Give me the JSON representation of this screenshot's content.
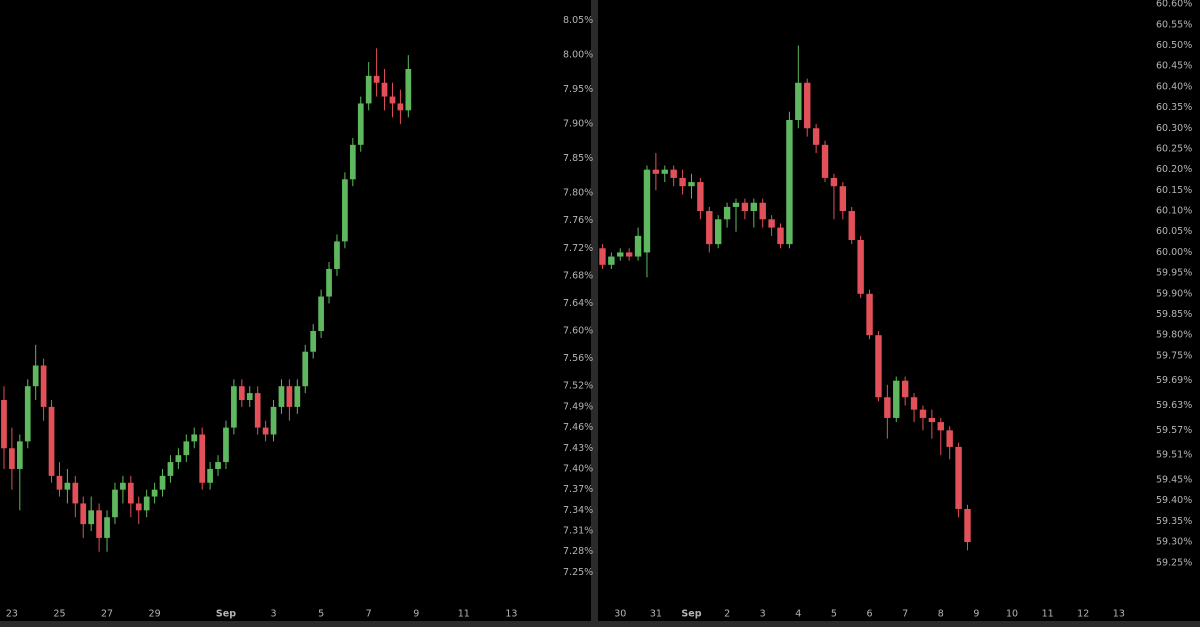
{
  "chart_data": [
    {
      "type": "candlestick",
      "categories": [
        null,
        "23",
        null,
        null,
        null,
        null,
        null,
        "25",
        null,
        null,
        null,
        null,
        null,
        "27",
        null,
        null,
        null,
        null,
        null,
        "29",
        null,
        null,
        null,
        null,
        null,
        null,
        null,
        null,
        "Sep",
        null,
        null,
        null,
        null,
        null,
        "3",
        null,
        null,
        null,
        null,
        null,
        "5",
        null,
        null,
        null,
        null,
        null,
        "7",
        null,
        null,
        null,
        null,
        null,
        "9",
        null,
        null,
        null,
        null,
        null,
        "11",
        null,
        null,
        null,
        null,
        null,
        "13",
        null,
        null,
        null,
        null,
        null
      ],
      "open": [
        7.5,
        7.43,
        7.4,
        7.44,
        7.52,
        7.55,
        7.49,
        7.39,
        7.37,
        7.38,
        7.35,
        7.32,
        7.34,
        7.3,
        7.33,
        7.37,
        7.38,
        7.35,
        7.34,
        7.36,
        7.37,
        7.39,
        7.41,
        7.42,
        7.44,
        7.45,
        7.38,
        7.4,
        7.41,
        7.46,
        7.52,
        7.5,
        7.51,
        7.46,
        7.45,
        7.49,
        7.52,
        7.49,
        7.52,
        7.57,
        7.6,
        7.65,
        7.69,
        7.73,
        7.82,
        7.87,
        7.93,
        7.97,
        7.96,
        7.94,
        7.93,
        7.92,
        null,
        null,
        null,
        null,
        null,
        null,
        null,
        null,
        null,
        null,
        null,
        null,
        null,
        null,
        null,
        null,
        null,
        null
      ],
      "high": [
        7.52,
        7.46,
        7.45,
        7.53,
        7.58,
        7.56,
        7.5,
        7.41,
        7.4,
        7.39,
        7.36,
        7.36,
        7.35,
        7.34,
        7.38,
        7.39,
        7.39,
        7.36,
        7.37,
        7.38,
        7.4,
        7.42,
        7.43,
        7.45,
        7.46,
        7.46,
        7.41,
        7.42,
        7.47,
        7.53,
        7.53,
        7.52,
        7.52,
        7.47,
        7.5,
        7.53,
        7.53,
        7.53,
        7.58,
        7.61,
        7.66,
        7.7,
        7.74,
        7.83,
        7.88,
        7.94,
        7.99,
        8.01,
        7.98,
        7.96,
        7.95,
        8.0,
        null,
        null,
        null,
        null,
        null,
        null,
        null,
        null,
        null,
        null,
        null,
        null,
        null,
        null,
        null,
        null,
        null,
        null
      ],
      "low": [
        7.4,
        7.37,
        7.34,
        7.43,
        7.5,
        7.47,
        7.38,
        7.36,
        7.35,
        7.33,
        7.3,
        7.31,
        7.28,
        7.28,
        7.32,
        7.35,
        7.33,
        7.32,
        7.33,
        7.35,
        7.36,
        7.38,
        7.4,
        7.41,
        7.43,
        7.37,
        7.37,
        7.39,
        7.4,
        7.45,
        7.49,
        7.49,
        7.45,
        7.44,
        7.44,
        7.48,
        7.47,
        7.48,
        7.51,
        7.56,
        7.59,
        7.64,
        7.68,
        7.72,
        7.81,
        7.86,
        7.92,
        7.94,
        7.92,
        7.91,
        7.9,
        7.91,
        null,
        null,
        null,
        null,
        null,
        null,
        null,
        null,
        null,
        null,
        null,
        null,
        null,
        null,
        null,
        null,
        null,
        null
      ],
      "close": [
        7.43,
        7.4,
        7.44,
        7.52,
        7.55,
        7.49,
        7.39,
        7.37,
        7.38,
        7.35,
        7.32,
        7.34,
        7.3,
        7.33,
        7.37,
        7.38,
        7.35,
        7.34,
        7.36,
        7.37,
        7.39,
        7.41,
        7.42,
        7.44,
        7.45,
        7.38,
        7.4,
        7.41,
        7.46,
        7.52,
        7.5,
        7.51,
        7.46,
        7.45,
        7.49,
        7.52,
        7.49,
        7.52,
        7.57,
        7.6,
        7.65,
        7.69,
        7.73,
        7.82,
        7.87,
        7.93,
        7.97,
        7.96,
        7.94,
        7.93,
        7.92,
        7.98,
        null,
        null,
        null,
        null,
        null,
        null,
        null,
        null,
        null,
        null,
        null,
        null,
        null,
        null,
        null,
        null,
        null,
        null
      ],
      "up_color": "#5fb85f",
      "down_color": "#e2505a",
      "ylim": [
        7.21,
        8.08
      ],
      "yticks": [
        {
          "value": 8.05,
          "label": "8.05%"
        },
        {
          "value": 8.0,
          "label": "8.00%"
        },
        {
          "value": 7.95,
          "label": "7.95%"
        },
        {
          "value": 7.9,
          "label": "7.90%"
        },
        {
          "value": 7.85,
          "label": "7.85%"
        },
        {
          "value": 7.8,
          "label": "7.80%"
        },
        {
          "value": 7.76,
          "label": "7.76%"
        },
        {
          "value": 7.72,
          "label": "7.72%"
        },
        {
          "value": 7.68,
          "label": "7.68%"
        },
        {
          "value": 7.64,
          "label": "7.64%"
        },
        {
          "value": 7.6,
          "label": "7.60%"
        },
        {
          "value": 7.56,
          "label": "7.56%"
        },
        {
          "value": 7.52,
          "label": "7.52%"
        },
        {
          "value": 7.49,
          "label": "7.49%"
        },
        {
          "value": 7.46,
          "label": "7.46%"
        },
        {
          "value": 7.43,
          "label": "7.43%"
        },
        {
          "value": 7.4,
          "label": "7.40%"
        },
        {
          "value": 7.37,
          "label": "7.37%"
        },
        {
          "value": 7.34,
          "label": "7.34%"
        },
        {
          "value": 7.31,
          "label": "7.31%"
        },
        {
          "value": 7.28,
          "label": "7.28%"
        },
        {
          "value": 7.25,
          "label": "7.25%"
        }
      ]
    },
    {
      "type": "candlestick",
      "categories": [
        null,
        null,
        "30",
        null,
        null,
        null,
        "31",
        null,
        null,
        null,
        "Sep",
        null,
        null,
        null,
        "2",
        null,
        null,
        null,
        "3",
        null,
        null,
        null,
        "4",
        null,
        null,
        null,
        "5",
        null,
        null,
        null,
        "6",
        null,
        null,
        null,
        "7",
        null,
        null,
        null,
        "8",
        null,
        null,
        null,
        "9",
        null,
        null,
        null,
        "10",
        null,
        null,
        null,
        "11",
        null,
        null,
        null,
        "12",
        null,
        null,
        null,
        "13",
        null,
        null,
        null
      ],
      "open": [
        60.01,
        59.97,
        59.99,
        60.0,
        59.99,
        60.0,
        60.2,
        60.19,
        60.2,
        60.18,
        60.16,
        60.17,
        60.1,
        60.02,
        60.08,
        60.11,
        60.12,
        60.1,
        60.12,
        60.08,
        60.06,
        60.02,
        60.32,
        60.41,
        60.3,
        60.26,
        60.18,
        60.16,
        60.1,
        60.03,
        59.9,
        59.8,
        59.65,
        59.6,
        59.69,
        59.65,
        59.62,
        59.6,
        59.59,
        59.57,
        59.53,
        59.38,
        null,
        null,
        null,
        null,
        null,
        null,
        null,
        null,
        null,
        null,
        null,
        null,
        null,
        null,
        null,
        null,
        null,
        null,
        null,
        null
      ],
      "high": [
        60.02,
        60.0,
        60.01,
        60.01,
        60.06,
        60.21,
        60.24,
        60.21,
        60.21,
        60.2,
        60.19,
        60.18,
        60.11,
        60.09,
        60.12,
        60.13,
        60.13,
        60.13,
        60.13,
        60.09,
        60.07,
        60.34,
        60.5,
        60.42,
        60.31,
        60.27,
        60.19,
        60.17,
        60.11,
        60.04,
        59.91,
        59.81,
        59.68,
        59.7,
        59.7,
        59.66,
        59.63,
        59.62,
        59.6,
        59.58,
        59.54,
        59.39,
        null,
        null,
        null,
        null,
        null,
        null,
        null,
        null,
        null,
        null,
        null,
        null,
        null,
        null,
        null,
        null,
        null,
        null,
        null,
        null
      ],
      "low": [
        59.96,
        59.96,
        59.98,
        59.98,
        59.98,
        59.94,
        60.15,
        60.17,
        60.16,
        60.14,
        60.13,
        60.08,
        60.0,
        60.01,
        60.06,
        60.05,
        60.08,
        60.06,
        60.06,
        60.04,
        60.01,
        60.01,
        60.3,
        60.28,
        60.24,
        60.17,
        60.08,
        60.08,
        60.02,
        59.89,
        59.79,
        59.64,
        59.55,
        59.59,
        59.63,
        59.59,
        59.57,
        59.55,
        59.51,
        59.5,
        59.36,
        59.28,
        null,
        null,
        null,
        null,
        null,
        null,
        null,
        null,
        null,
        null,
        null,
        null,
        null,
        null,
        null,
        null,
        null,
        null,
        null,
        null
      ],
      "close": [
        59.97,
        59.99,
        60.0,
        59.99,
        60.04,
        60.2,
        60.19,
        60.2,
        60.18,
        60.16,
        60.17,
        60.1,
        60.02,
        60.08,
        60.11,
        60.12,
        60.1,
        60.12,
        60.08,
        60.06,
        60.02,
        60.32,
        60.41,
        60.3,
        60.26,
        60.18,
        60.16,
        60.1,
        60.03,
        59.9,
        59.8,
        59.65,
        59.6,
        59.69,
        59.65,
        59.62,
        59.6,
        59.59,
        59.57,
        59.53,
        59.38,
        59.3,
        null,
        null,
        null,
        null,
        null,
        null,
        null,
        null,
        null,
        null,
        null,
        null,
        null,
        null,
        null,
        null,
        null,
        null,
        null,
        null
      ],
      "up_color": "#5fb85f",
      "down_color": "#e2505a",
      "ylim": [
        59.16,
        60.61
      ],
      "yticks": [
        {
          "value": 60.6,
          "label": "60.60%"
        },
        {
          "value": 60.55,
          "label": "60.55%"
        },
        {
          "value": 60.5,
          "label": "60.50%"
        },
        {
          "value": 60.45,
          "label": "60.45%"
        },
        {
          "value": 60.4,
          "label": "60.40%"
        },
        {
          "value": 60.35,
          "label": "60.35%"
        },
        {
          "value": 60.3,
          "label": "60.30%"
        },
        {
          "value": 60.25,
          "label": "60.25%"
        },
        {
          "value": 60.2,
          "label": "60.20%"
        },
        {
          "value": 60.15,
          "label": "60.15%"
        },
        {
          "value": 60.1,
          "label": "60.10%"
        },
        {
          "value": 60.05,
          "label": "60.05%"
        },
        {
          "value": 60.0,
          "label": "60.00%"
        },
        {
          "value": 59.95,
          "label": "59.95%"
        },
        {
          "value": 59.9,
          "label": "59.90%"
        },
        {
          "value": 59.85,
          "label": "59.85%"
        },
        {
          "value": 59.8,
          "label": "59.80%"
        },
        {
          "value": 59.75,
          "label": "59.75%"
        },
        {
          "value": 59.69,
          "label": "59.69%"
        },
        {
          "value": 59.63,
          "label": "59.63%"
        },
        {
          "value": 59.57,
          "label": "59.57%"
        },
        {
          "value": 59.51,
          "label": "59.51%"
        },
        {
          "value": 59.45,
          "label": "59.45%"
        },
        {
          "value": 59.4,
          "label": "59.40%"
        },
        {
          "value": 59.35,
          "label": "59.35%"
        },
        {
          "value": 59.3,
          "label": "59.30%"
        },
        {
          "value": 59.25,
          "label": "59.25%"
        }
      ]
    }
  ]
}
